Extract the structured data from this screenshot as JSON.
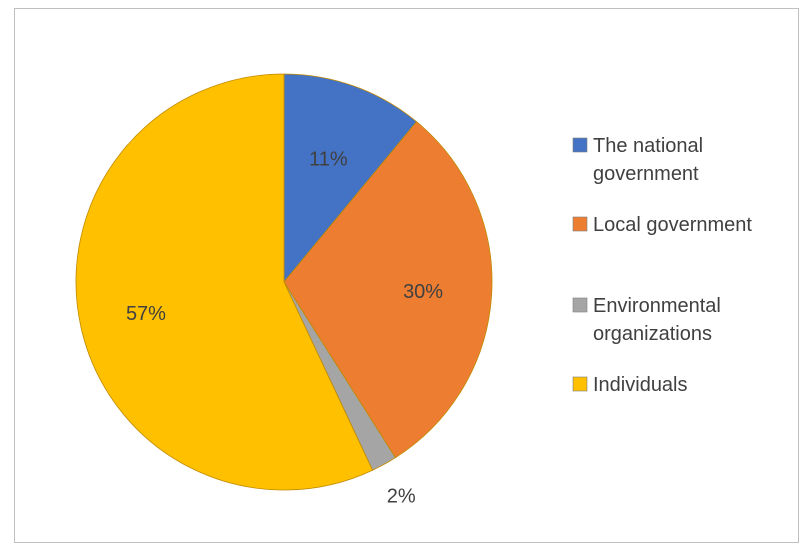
{
  "chart_data": {
    "type": "pie",
    "title": "",
    "legend_position": "right",
    "slices": [
      {
        "label": "The national government",
        "legend_lines": [
          "The national",
          "government"
        ],
        "value": 11,
        "display": "11%",
        "color": "#4472C4"
      },
      {
        "label": "Local government",
        "legend_lines": [
          "Local government"
        ],
        "value": 30,
        "display": "30%",
        "color": "#ED7D31"
      },
      {
        "label": "Environmental organizations",
        "legend_lines": [
          "Environmental",
          "organizations"
        ],
        "value": 2,
        "display": "2%",
        "color": "#A5A5A5"
      },
      {
        "label": "Individuals",
        "legend_lines": [
          "Individuals"
        ],
        "value": 57,
        "display": "57%",
        "color": "#FFC000"
      }
    ]
  }
}
